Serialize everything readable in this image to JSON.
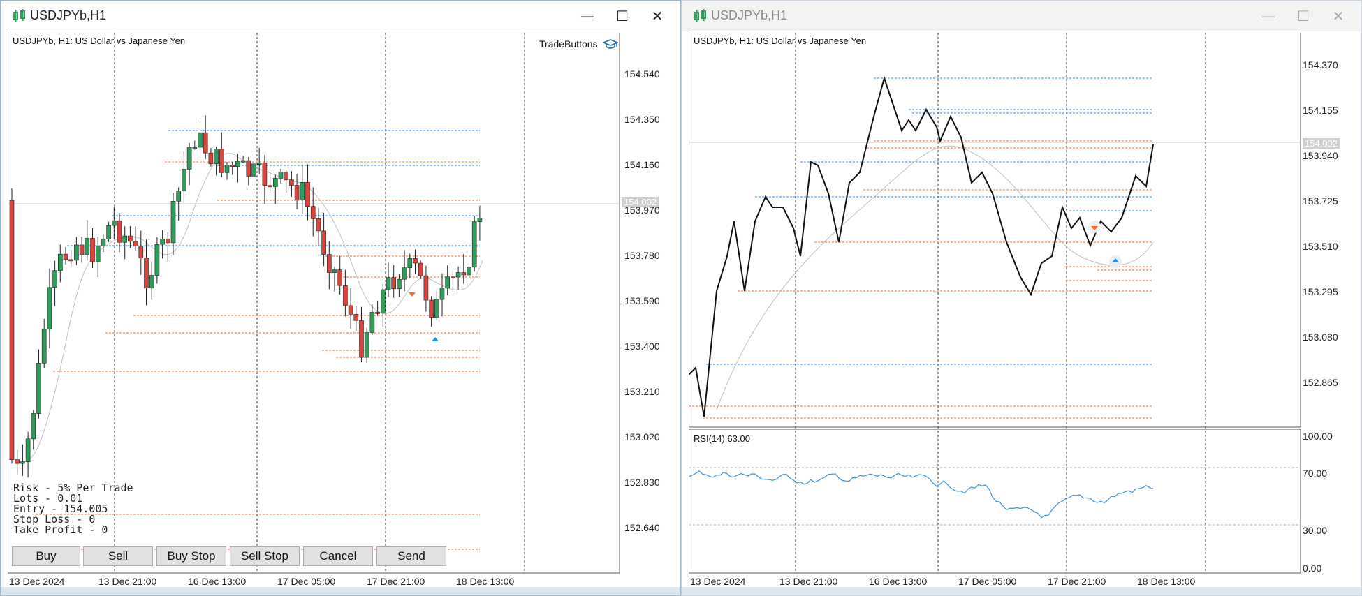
{
  "windows": [
    {
      "title": "USDJPYb,H1",
      "symbol_label": "USDJPYb, H1:  US Dollar vs Japanese Yen",
      "tradebuttons_label": "TradeButtons",
      "price_axis": [
        "154.540",
        "154.350",
        "154.160",
        "153.970",
        "153.780",
        "153.590",
        "153.400",
        "153.210",
        "153.020",
        "152.830",
        "152.640"
      ],
      "current_price": "154.002",
      "time_axis": [
        "13 Dec 2024",
        "13 Dec 21:00",
        "16 Dec 13:00",
        "17 Dec 05:00",
        "17 Dec 21:00",
        "18 Dec 13:00"
      ],
      "risk_panel": [
        "Risk - 5% Per Trade",
        "Lots - 0.01",
        "Entry - 154.005",
        "Stop Loss - 0",
        "Take Profit - 0"
      ],
      "buttons": [
        "Buy",
        "Sell",
        "Buy Stop",
        "Sell Stop",
        "Cancel",
        "Send"
      ],
      "controls": {
        "minimize": "—",
        "maximize": "☐",
        "close": "✕"
      }
    },
    {
      "title": "USDJPYb,H1",
      "symbol_label": "USDJPYb, H1:  US Dollar vs Japanese Yen",
      "price_axis": [
        "154.370",
        "154.155",
        "153.940",
        "153.725",
        "153.510",
        "153.295",
        "153.080",
        "152.865"
      ],
      "current_price": "154.002",
      "rsi_label": "RSI(14) 63.00",
      "rsi_axis": [
        "100.00",
        "70.00",
        "30.00",
        "0.00"
      ],
      "time_axis": [
        "13 Dec 2024",
        "13 Dec 21:00",
        "16 Dec 13:00",
        "17 Dec 05:00",
        "17 Dec 21:00",
        "18 Dec 13:00"
      ],
      "controls": {
        "minimize": "—",
        "maximize": "☐",
        "close": "✕"
      }
    }
  ],
  "colors": {
    "bull_candle": "#2e9d5a",
    "bear_candle": "#d9453c",
    "buy_line": "#1e90ff",
    "sell_line": "#ff6a2a",
    "ma_line": "#c0c0c0",
    "rsi_line": "#3a93e0",
    "price_line": "#111111"
  },
  "icons": [
    "chart-candles-icon",
    "graduation-cap-icon",
    "sell-arrow-icon",
    "buy-arrow-icon"
  ]
}
